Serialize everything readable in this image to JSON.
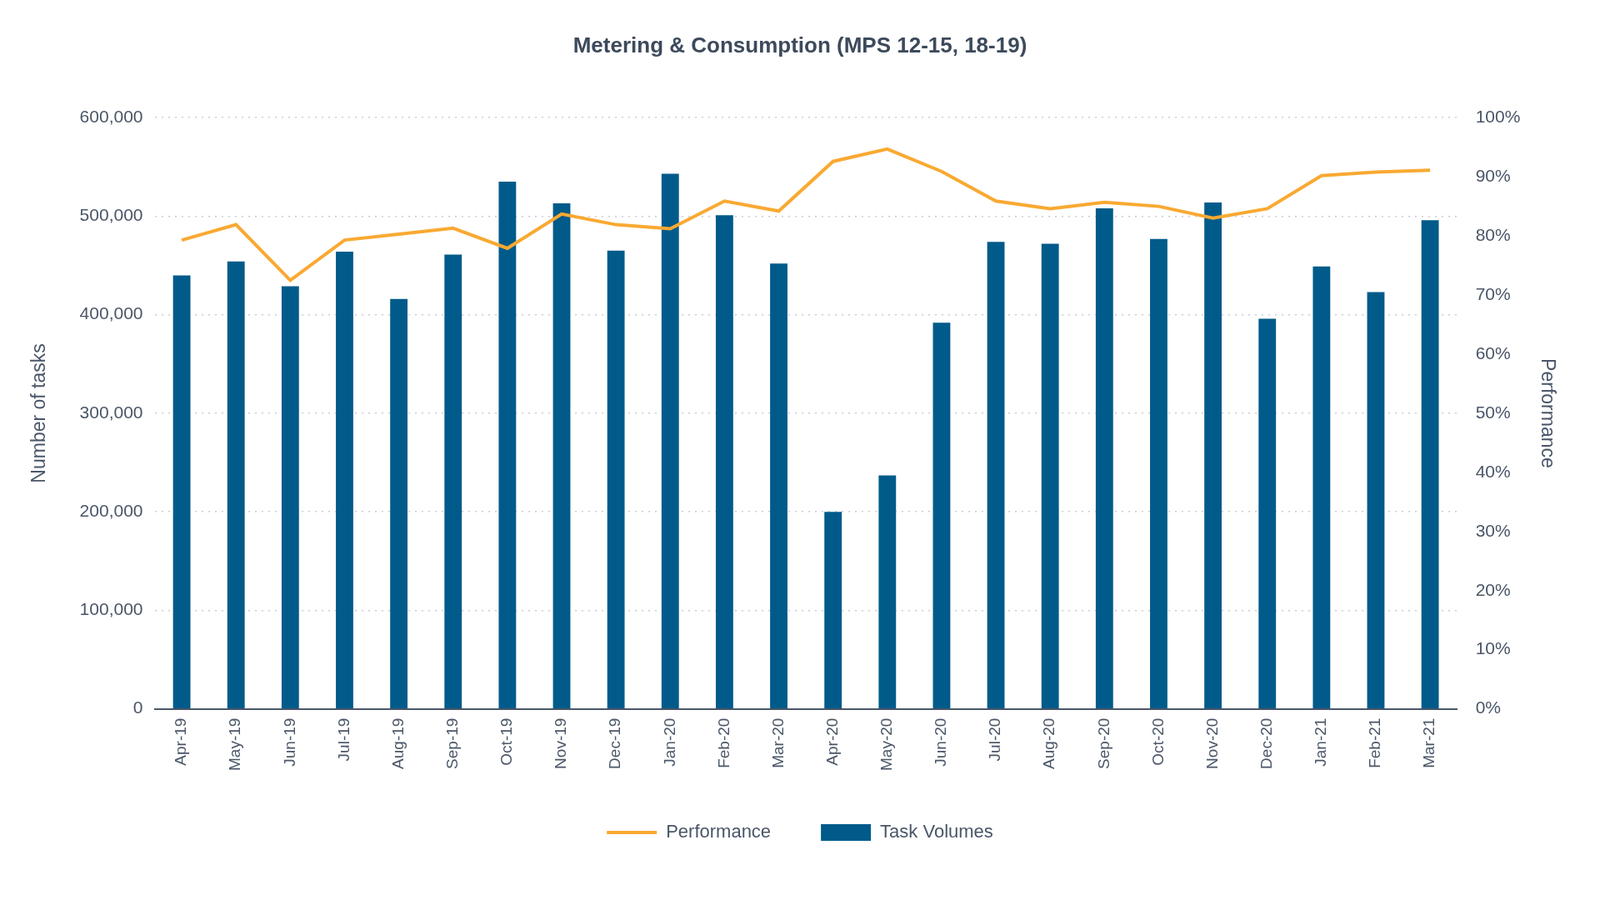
{
  "chart_data": {
    "type": "bar",
    "title": "Metering & Consumption (MPS 12-15, 18-19)",
    "y_label": "Number of tasks",
    "y2_label": "Performance",
    "categories": [
      "Apr-19",
      "May-19",
      "Jun-19",
      "Jul-19",
      "Aug-19",
      "Sep-19",
      "Oct-19",
      "Nov-19",
      "Dec-19",
      "Jan-20",
      "Feb-20",
      "Mar-20",
      "Apr-20",
      "May-20",
      "Jun-20",
      "Jul-20",
      "Aug-20",
      "Sep-20",
      "Oct-20",
      "Nov-20",
      "Dec-20",
      "Jan-21",
      "Feb-21",
      "Mar-21"
    ],
    "series": [
      {
        "name": "Task Volumes",
        "type": "bar",
        "color": "#005b8a",
        "values": [
          440000,
          454000,
          429000,
          464000,
          416000,
          461000,
          535000,
          513000,
          465000,
          543000,
          501000,
          452000,
          200000,
          237000,
          392000,
          474000,
          472000,
          508000,
          477000,
          514000,
          396000,
          449000,
          423000,
          496000
        ]
      },
      {
        "name": "Performance",
        "type": "line",
        "axis": "y2",
        "color": "#f9a932",
        "marker": "none",
        "line_style": "solid",
        "values": [
          79.3,
          81.9,
          72.5,
          79.3,
          80.3,
          81.3,
          77.9,
          83.7,
          81.9,
          81.2,
          85.9,
          84.2,
          92.6,
          94.7,
          90.9,
          85.9,
          84.6,
          85.7,
          85.0,
          83.0,
          84.6,
          90.2,
          90.8,
          91.1
        ]
      }
    ],
    "ylim": [
      0,
      600000
    ],
    "yticks": [
      0,
      {
        "value": 100000,
        "label": "100,000"
      },
      {
        "value": 200000,
        "label": "200,000"
      },
      {
        "value": 300000,
        "label": "300,000"
      },
      {
        "value": 400000,
        "label": "400,000"
      },
      {
        "value": 500000,
        "label": "500,000"
      },
      {
        "value": 600000,
        "label": "600,000"
      }
    ],
    "y2lim": [
      0,
      100
    ],
    "y2ticks": [
      {
        "value": 0,
        "label": "0%"
      },
      {
        "value": 10,
        "label": "10%"
      },
      {
        "value": 20,
        "label": "20%"
      },
      {
        "value": 30,
        "label": "30%"
      },
      {
        "value": 40,
        "label": "40%"
      },
      {
        "value": 50,
        "label": "50%"
      },
      {
        "value": 60,
        "label": "60%"
      },
      {
        "value": 70,
        "label": "70%"
      },
      {
        "value": 80,
        "label": "80%"
      },
      {
        "value": 90,
        "label": "90%"
      },
      {
        "value": 100,
        "label": "100%"
      }
    ],
    "grid": true,
    "legend": "bottom"
  }
}
